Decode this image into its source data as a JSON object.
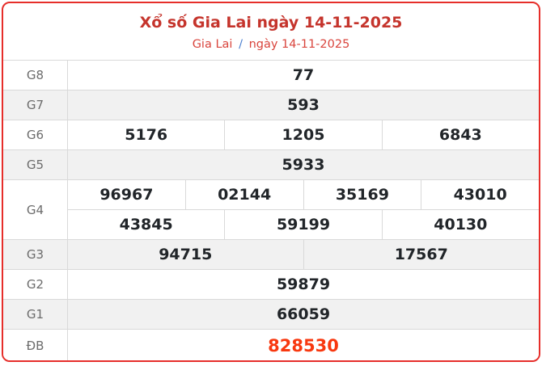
{
  "header": {
    "title": "Xổ số Gia Lai ngày 14-11-2025",
    "breadcrumb": {
      "region": "Gia Lai",
      "separator": "/",
      "date": "ngày 14-11-2025"
    }
  },
  "table": {
    "rows": [
      {
        "label": "G8",
        "shaded": false,
        "special": false,
        "lines": [
          [
            "77"
          ]
        ]
      },
      {
        "label": "G7",
        "shaded": true,
        "special": false,
        "lines": [
          [
            "593"
          ]
        ]
      },
      {
        "label": "G6",
        "shaded": false,
        "special": false,
        "lines": [
          [
            "5176",
            "1205",
            "6843"
          ]
        ]
      },
      {
        "label": "G5",
        "shaded": true,
        "special": false,
        "lines": [
          [
            "5933"
          ]
        ]
      },
      {
        "label": "G4",
        "shaded": false,
        "special": false,
        "lines": [
          [
            "96967",
            "02144",
            "35169",
            "43010"
          ],
          [
            "43845",
            "59199",
            "40130"
          ]
        ]
      },
      {
        "label": "G3",
        "shaded": true,
        "special": false,
        "lines": [
          [
            "94715",
            "17567"
          ]
        ]
      },
      {
        "label": "G2",
        "shaded": false,
        "special": false,
        "lines": [
          [
            "59879"
          ]
        ]
      },
      {
        "label": "G1",
        "shaded": true,
        "special": false,
        "lines": [
          [
            "66059"
          ]
        ]
      },
      {
        "label": "ĐB",
        "shaded": false,
        "special": true,
        "lines": [
          [
            "828530"
          ]
        ]
      }
    ]
  },
  "colors": {
    "card_border": "#e62e2a",
    "title": "#c5342c",
    "breadcrumb_link": "#d9443c",
    "breadcrumb_separator": "#4a7fd0",
    "special_value": "#f8380f",
    "shaded_row_bg": "#f1f1f1",
    "grid_line": "#d9d9d9",
    "label_text": "#6c6c6c",
    "number_text": "#212529"
  }
}
